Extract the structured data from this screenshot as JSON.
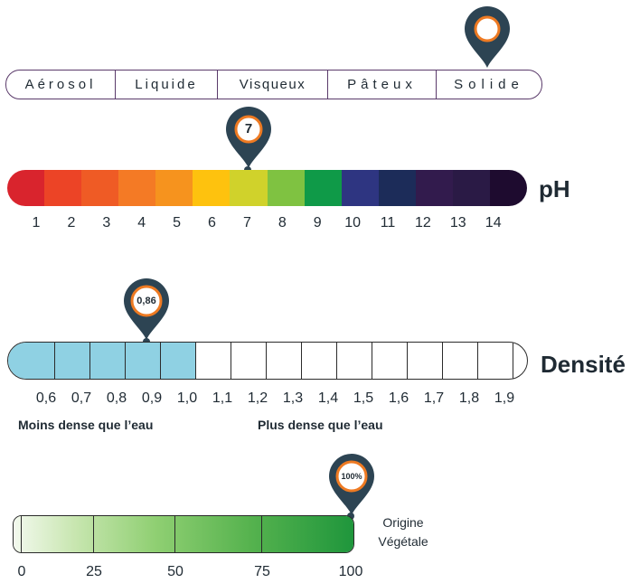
{
  "state_scale": {
    "segments": [
      "Aérosol",
      "Liquide",
      "Visqueux",
      "Pâteux",
      "Solide"
    ],
    "selected": "Solide"
  },
  "ph_scale": {
    "title": "pH",
    "ticks": [
      "1",
      "2",
      "3",
      "4",
      "5",
      "6",
      "7",
      "8",
      "9",
      "10",
      "11",
      "12",
      "13",
      "14"
    ],
    "colors": [
      "#d9242d",
      "#ec4426",
      "#ef5b25",
      "#f47a25",
      "#f6931e",
      "#fec20e",
      "#d0d22b",
      "#7fc241",
      "#0f9a48",
      "#2e3581",
      "#1c2c59",
      "#321b4d",
      "#2a1a45",
      "#1e0b2f"
    ],
    "marker_value": "7",
    "marker_index": 6
  },
  "density_scale": {
    "title": "Densité",
    "ticks": [
      "0,6",
      "0,7",
      "0,8",
      "0,9",
      "1,0",
      "1,1",
      "1,2",
      "1,3",
      "1,4",
      "1,5",
      "1,6",
      "1,7",
      "1,8",
      "1,9"
    ],
    "fill_to_index": 4,
    "marker_value": "0,86",
    "marker_number": 0.86,
    "caption_left": "Moins dense que l’eau",
    "caption_right": "Plus dense que l’eau",
    "fill_color": "#8fd1e3"
  },
  "vegetal_scale": {
    "ticks": [
      "0",
      "25",
      "50",
      "75",
      "100"
    ],
    "marker_value": "100%",
    "marker_percent": 100,
    "caption_line1": "Origine",
    "caption_line2": "Végétale"
  },
  "colors": {
    "pin_body": "#2d4453",
    "pin_ring": "#ee7a22",
    "border": "#5a3a6a"
  }
}
